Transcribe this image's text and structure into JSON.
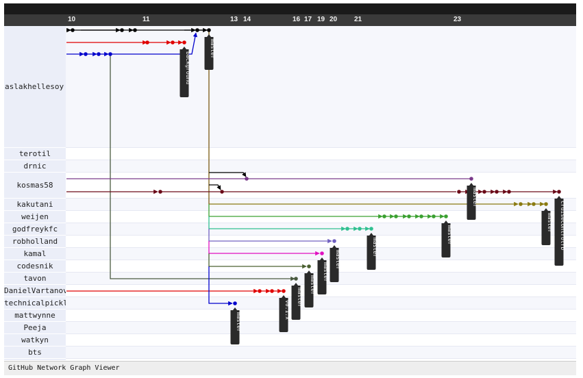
{
  "app": {
    "footer": "GitHub Network Graph Viewer"
  },
  "dates": [
    "10",
    "11",
    "13",
    "14",
    "16",
    "17",
    "19",
    "20",
    "21",
    "23"
  ],
  "users": [
    "aslakhellesoy",
    "terotil",
    "drnic",
    "kosmas58",
    "kakutani",
    "weijen",
    "godfreykfc",
    "robholland",
    "kamal",
    "codesnik",
    "tavon",
    "DanielVartanov",
    "technicalpickles",
    "mattwynne",
    "Peeja",
    "watkyn",
    "bts"
  ],
  "tags": [
    "background",
    "master",
    "master",
    "master",
    "master",
    "master",
    "master",
    "master",
    "master",
    "v0.1.x",
    "master",
    "master",
    "master",
    "cruisecontrolrb"
  ],
  "colors": {
    "black": "#000000",
    "red": "#e00000",
    "blue": "#0000cc",
    "olive_master": "#7a5a12",
    "slate": "#4a5a40",
    "purple": "#7a3a8a",
    "maroon": "#6a0a18",
    "olive": "#8a7a10",
    "green": "#3aa030",
    "teal": "#30c090",
    "violet": "#7060c0",
    "magenta": "#e010c0",
    "darkgreen": "#4a6030"
  }
}
